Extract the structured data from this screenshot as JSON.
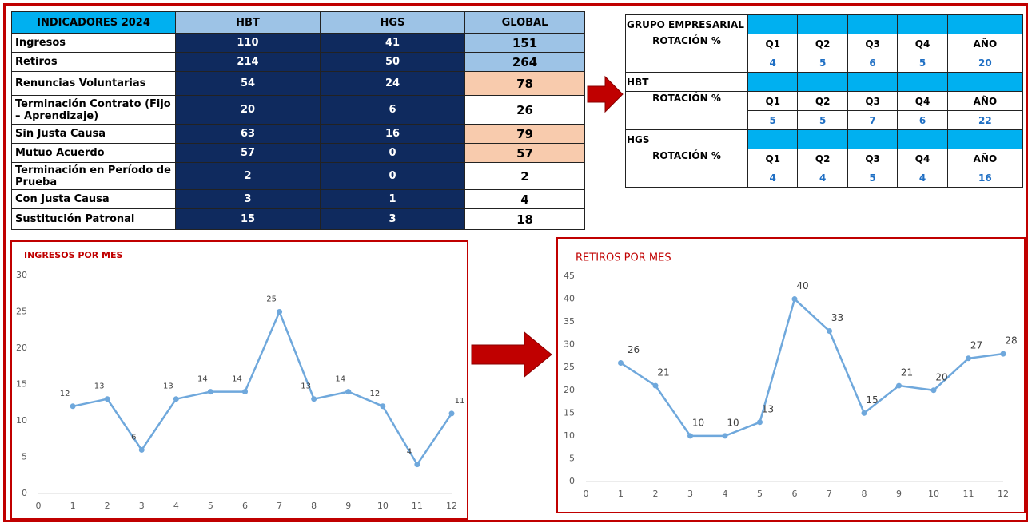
{
  "main_table": {
    "header": [
      "INDICADORES 2024",
      "HBT",
      "HGS",
      "GLOBAL"
    ],
    "rows": [
      [
        "Ingresos",
        110,
        41,
        151
      ],
      [
        "Retiros",
        214,
        50,
        264
      ],
      [
        "Renuncias Voluntarias",
        54,
        24,
        78
      ],
      [
        "Terminación Contrato (Fijo – Aprendizaje)",
        20,
        6,
        26
      ],
      [
        "Sin Justa Causa",
        63,
        16,
        79
      ],
      [
        "Mutuo Acuerdo",
        57,
        0,
        57
      ],
      [
        "Terminación en Período de Prueba",
        2,
        0,
        2
      ],
      [
        "Con Justa Causa",
        3,
        1,
        4
      ],
      [
        "Sustitución Patronal",
        15,
        3,
        18
      ]
    ]
  },
  "rotation_table": {
    "groups": [
      {
        "name": "GRUPO EMPRESARIAL",
        "label": "ROTACIÓN  %",
        "columns": [
          "Q1",
          "Q2",
          "Q3",
          "Q4",
          "AÑO"
        ],
        "values": [
          4,
          5,
          6,
          5,
          20
        ]
      },
      {
        "name": "HBT",
        "label": "ROTACIÓN %",
        "columns": [
          "Q1",
          "Q2",
          "Q3",
          "Q4",
          "AÑO"
        ],
        "values": [
          5,
          5,
          7,
          6,
          22
        ]
      },
      {
        "name": "HGS",
        "label": "ROTACIÓN  %",
        "columns": [
          "Q1",
          "Q2",
          "Q3",
          "Q4",
          "AÑO"
        ],
        "values": [
          4,
          4,
          5,
          4,
          16
        ]
      }
    ]
  },
  "chart_data": [
    {
      "type": "line",
      "title": "INGRESOS POR MES",
      "color": "#6fa8dc",
      "x": [
        1,
        2,
        3,
        4,
        5,
        6,
        7,
        8,
        9,
        10,
        11,
        12
      ],
      "values": [
        12,
        13,
        6,
        13,
        14,
        14,
        25,
        13,
        14,
        12,
        4,
        11
      ],
      "xlim": [
        0,
        12
      ],
      "xticks": [
        0,
        1,
        2,
        3,
        4,
        5,
        6,
        7,
        8,
        9,
        10,
        11,
        12
      ],
      "ylim": [
        0,
        30
      ],
      "yticks": [
        0,
        5,
        10,
        15,
        20,
        25,
        30
      ]
    },
    {
      "type": "line",
      "title": "RETIROS POR MES",
      "color": "#6fa8dc",
      "x": [
        1,
        2,
        3,
        4,
        5,
        6,
        7,
        8,
        9,
        10,
        11,
        12
      ],
      "values": [
        26,
        21,
        10,
        10,
        13,
        40,
        33,
        15,
        21,
        20,
        27,
        28
      ],
      "xlim": [
        0,
        12
      ],
      "xticks": [
        0,
        1,
        2,
        3,
        4,
        5,
        6,
        7,
        8,
        9,
        10,
        11,
        12
      ],
      "ylim": [
        0,
        45
      ],
      "yticks": [
        0,
        5,
        10,
        15,
        20,
        25,
        30,
        35,
        40,
        45
      ]
    }
  ]
}
